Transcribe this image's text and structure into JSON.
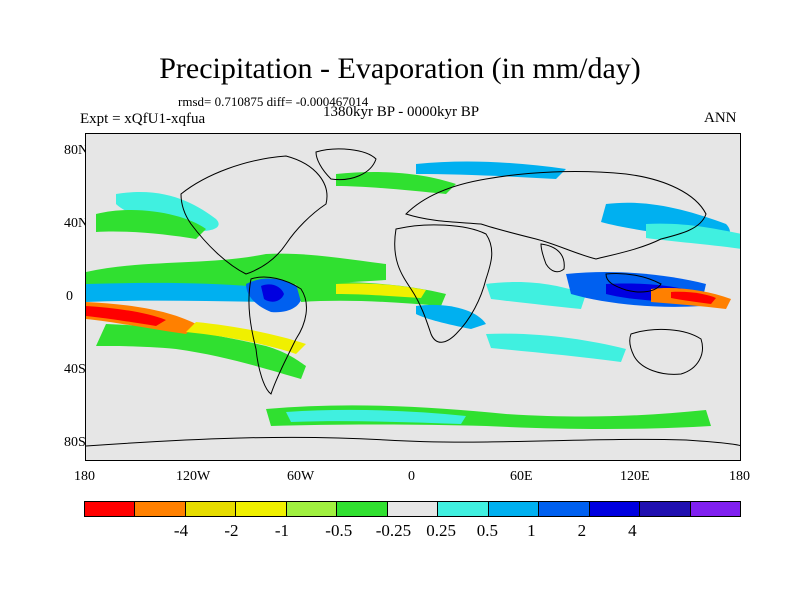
{
  "title": "Precipitation - Evaporation (in mm/day)",
  "stats": "rmsd= 0.710875 diff= -0.000467014",
  "experiment": "Expt = xQfU1-xqfua",
  "period": "1380kyr BP - 0000kyr BP",
  "season": "ANN",
  "lat_labels": [
    "80N",
    "40N",
    "0",
    "40S",
    "80S"
  ],
  "lon_labels": [
    "180",
    "120W",
    "60W",
    "0",
    "60E",
    "120E",
    "180"
  ],
  "colorbar": {
    "colors": [
      "#ff0000",
      "#ff8000",
      "#e6dc00",
      "#f0f000",
      "#a0f040",
      "#30e030",
      "#e6e6e6",
      "#40f0e0",
      "#00b0f0",
      "#0060f0",
      "#0000e0",
      "#2010b0",
      "#8020f0"
    ],
    "labels": [
      "-4",
      "-2",
      "-1",
      "-0.5",
      "-0.25",
      "0.25",
      "0.5",
      "1",
      "2",
      "4"
    ]
  },
  "colors": {
    "background": "#e6e6e6",
    "coastline": "#000000"
  }
}
